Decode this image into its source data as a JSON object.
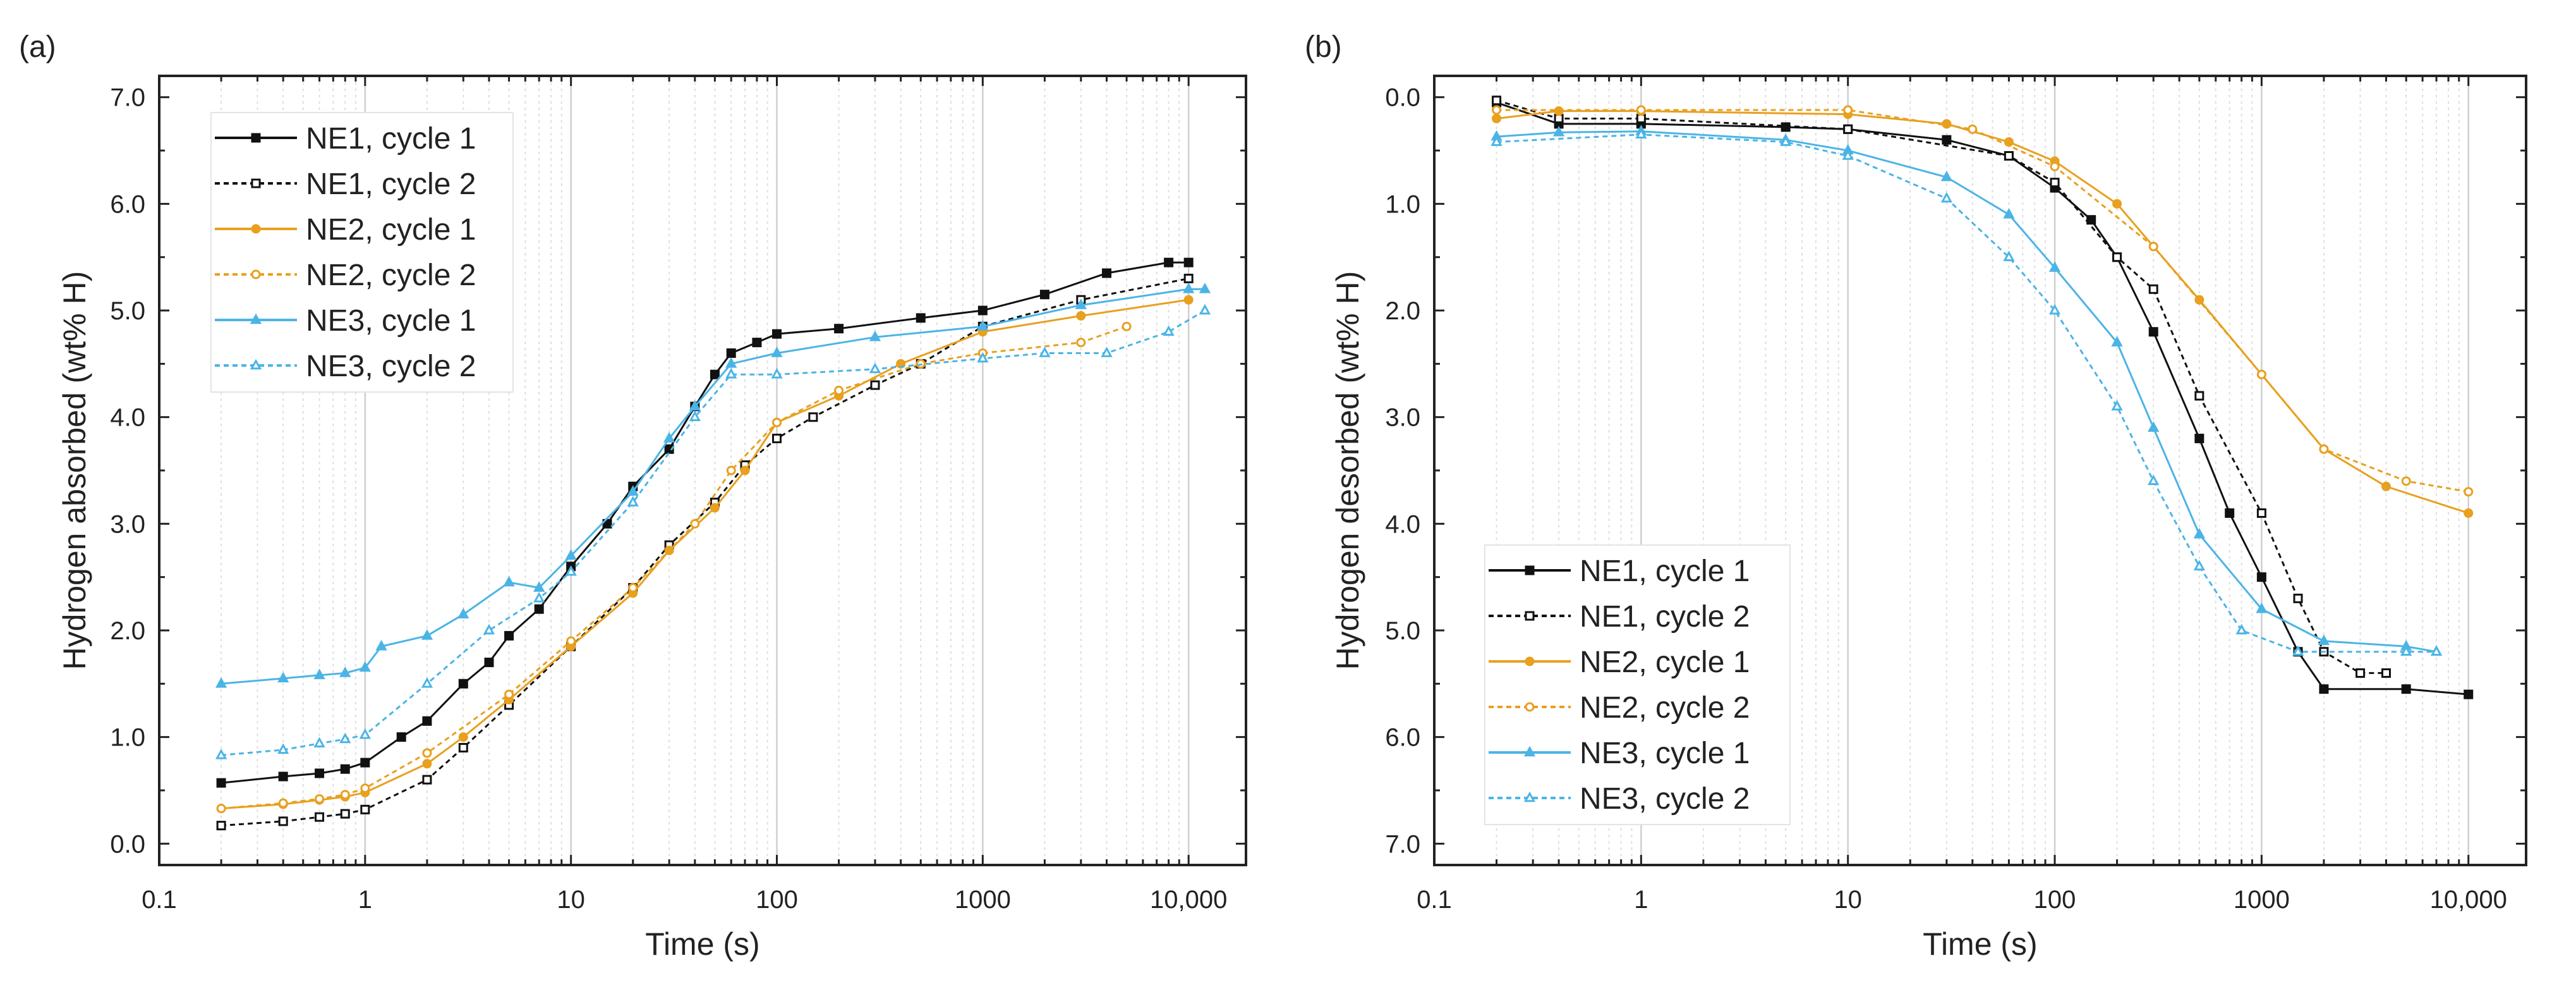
{
  "colors": {
    "NE1": "#111111",
    "NE2": "#E8A01E",
    "NE3": "#4BB4E6"
  },
  "chart_data": [
    {
      "panel_label": "(a)",
      "type": "line",
      "xlabel": "Time (s)",
      "ylabel": "Hydrogen absorbed (wt% H)",
      "xscale": "log",
      "xlim": [
        0.1,
        19000
      ],
      "ylim": [
        -0.2,
        7.2
      ],
      "y_inverted": false,
      "xticks": [
        0.1,
        1,
        10,
        100,
        1000,
        10000
      ],
      "xtick_labels": [
        "0.1",
        "1",
        "10",
        "100",
        "1000",
        "10,000"
      ],
      "yticks": [
        0,
        1,
        2,
        3,
        4,
        5,
        6,
        7
      ],
      "ytick_labels": [
        "0.0",
        "1.0",
        "2.0",
        "3.0",
        "4.0",
        "5.0",
        "6.0",
        "7.0"
      ],
      "grid": "vertical, log minor",
      "legend_position": "top-left",
      "series": [
        {
          "name": "NE1, cycle 1",
          "color_key": "NE1",
          "dash": false,
          "marker": "square-filled",
          "x": [
            0.2,
            0.4,
            0.6,
            0.8,
            1,
            1.5,
            2,
            3,
            4,
            5,
            7,
            10,
            15,
            20,
            30,
            40,
            50,
            60,
            80,
            100,
            200,
            500,
            1000,
            2000,
            4000,
            8000,
            10000
          ],
          "y": [
            0.57,
            0.63,
            0.66,
            0.7,
            0.76,
            1.0,
            1.15,
            1.5,
            1.7,
            1.95,
            2.2,
            2.6,
            3.0,
            3.35,
            3.7,
            4.1,
            4.4,
            4.6,
            4.7,
            4.78,
            4.83,
            4.93,
            5.0,
            5.15,
            5.35,
            5.45,
            5.45
          ]
        },
        {
          "name": "NE1, cycle 2",
          "color_key": "NE1",
          "dash": true,
          "marker": "square-open",
          "x": [
            0.2,
            0.4,
            0.6,
            0.8,
            1,
            2,
            3,
            5,
            10,
            20,
            30,
            50,
            70,
            100,
            150,
            300,
            500,
            1000,
            3000,
            10000
          ],
          "y": [
            0.17,
            0.21,
            0.25,
            0.28,
            0.32,
            0.6,
            0.9,
            1.3,
            1.85,
            2.4,
            2.8,
            3.2,
            3.55,
            3.8,
            4.0,
            4.3,
            4.5,
            4.85,
            5.1,
            5.3
          ]
        },
        {
          "name": "NE2, cycle 1",
          "color_key": "NE2",
          "dash": false,
          "marker": "circle-filled",
          "x": [
            0.2,
            0.4,
            0.6,
            0.8,
            1,
            2,
            3,
            5,
            10,
            20,
            30,
            50,
            70,
            100,
            200,
            400,
            1000,
            3000,
            10000
          ],
          "y": [
            0.33,
            0.37,
            0.41,
            0.44,
            0.48,
            0.75,
            1.0,
            1.35,
            1.85,
            2.35,
            2.75,
            3.15,
            3.5,
            3.95,
            4.2,
            4.5,
            4.8,
            4.95,
            5.1
          ]
        },
        {
          "name": "NE2, cycle 2",
          "color_key": "NE2",
          "dash": true,
          "marker": "circle-open",
          "x": [
            0.2,
            0.4,
            0.6,
            0.8,
            1,
            2,
            5,
            10,
            20,
            40,
            60,
            100,
            200,
            500,
            1000,
            3000,
            5000
          ],
          "y": [
            0.33,
            0.38,
            0.42,
            0.46,
            0.52,
            0.85,
            1.4,
            1.9,
            2.4,
            3.0,
            3.5,
            3.95,
            4.25,
            4.5,
            4.6,
            4.7,
            4.85
          ]
        },
        {
          "name": "NE3, cycle 1",
          "color_key": "NE3",
          "dash": false,
          "marker": "triangle-filled",
          "x": [
            0.2,
            0.4,
            0.6,
            0.8,
            1,
            1.2,
            2,
            3,
            5,
            7,
            10,
            20,
            30,
            40,
            60,
            100,
            300,
            1000,
            3000,
            10000,
            12000
          ],
          "y": [
            1.5,
            1.55,
            1.58,
            1.6,
            1.65,
            1.85,
            1.95,
            2.15,
            2.45,
            2.4,
            2.7,
            3.3,
            3.8,
            4.1,
            4.5,
            4.6,
            4.75,
            4.85,
            5.05,
            5.2,
            5.2
          ]
        },
        {
          "name": "NE3, cycle 2",
          "color_key": "NE3",
          "dash": true,
          "marker": "triangle-open",
          "x": [
            0.2,
            0.4,
            0.6,
            0.8,
            1,
            2,
            4,
            7,
            10,
            20,
            40,
            60,
            100,
            300,
            1000,
            2000,
            4000,
            8000,
            12000
          ],
          "y": [
            0.83,
            0.88,
            0.94,
            0.98,
            1.02,
            1.5,
            2.0,
            2.3,
            2.55,
            3.2,
            4.0,
            4.4,
            4.4,
            4.45,
            4.55,
            4.6,
            4.6,
            4.8,
            5.0
          ]
        }
      ]
    },
    {
      "panel_label": "(b)",
      "type": "line",
      "xlabel": "Time (s)",
      "ylabel": "Hydrogen desorbed (wt% H)",
      "xscale": "log",
      "xlim": [
        0.1,
        19000
      ],
      "ylim": [
        -0.2,
        7.2
      ],
      "y_inverted": true,
      "xticks": [
        0.1,
        1,
        10,
        100,
        1000,
        10000
      ],
      "xtick_labels": [
        "0.1",
        "1",
        "10",
        "100",
        "1000",
        "10,000"
      ],
      "yticks": [
        0,
        1,
        2,
        3,
        4,
        5,
        6,
        7
      ],
      "ytick_labels": [
        "0.0",
        "1.0",
        "2.0",
        "3.0",
        "4.0",
        "5.0",
        "6.0",
        "7.0"
      ],
      "grid": "vertical, log minor",
      "legend_position": "bottom-left",
      "series": [
        {
          "name": "NE1, cycle 1",
          "color_key": "NE1",
          "dash": false,
          "marker": "square-filled",
          "x": [
            0.2,
            0.4,
            1,
            5,
            10,
            30,
            60,
            100,
            150,
            200,
            300,
            500,
            700,
            1000,
            1500,
            2000,
            5000,
            10000
          ],
          "y": [
            0.05,
            0.25,
            0.25,
            0.28,
            0.3,
            0.4,
            0.55,
            0.85,
            1.15,
            1.5,
            2.2,
            3.2,
            3.9,
            4.5,
            5.2,
            5.55,
            5.55,
            5.6
          ]
        },
        {
          "name": "NE1, cycle 2",
          "color_key": "NE1",
          "dash": true,
          "marker": "square-open",
          "x": [
            0.2,
            0.4,
            1,
            10,
            60,
            100,
            200,
            300,
            500,
            1000,
            1500,
            2000,
            3000,
            4000
          ],
          "y": [
            0.03,
            0.2,
            0.2,
            0.3,
            0.55,
            0.8,
            1.5,
            1.8,
            2.8,
            3.9,
            4.7,
            5.2,
            5.4,
            5.4
          ]
        },
        {
          "name": "NE2, cycle 1",
          "color_key": "NE2",
          "dash": false,
          "marker": "circle-filled",
          "x": [
            0.2,
            0.4,
            1,
            10,
            30,
            60,
            100,
            200,
            300,
            500,
            1000,
            2000,
            4000,
            10000
          ],
          "y": [
            0.2,
            0.13,
            0.13,
            0.16,
            0.25,
            0.42,
            0.6,
            1.0,
            1.4,
            1.9,
            2.6,
            3.3,
            3.65,
            3.9
          ]
        },
        {
          "name": "NE2, cycle 2",
          "color_key": "NE2",
          "dash": true,
          "marker": "circle-open",
          "x": [
            0.2,
            1,
            10,
            40,
            100,
            300,
            1000,
            2000,
            5000,
            10000
          ],
          "y": [
            0.12,
            0.12,
            0.12,
            0.3,
            0.65,
            1.4,
            2.6,
            3.3,
            3.6,
            3.7
          ]
        },
        {
          "name": "NE3, cycle 1",
          "color_key": "NE3",
          "dash": false,
          "marker": "triangle-filled",
          "x": [
            0.2,
            0.4,
            1,
            5,
            10,
            30,
            60,
            100,
            200,
            300,
            500,
            1000,
            2000,
            5000,
            7000
          ],
          "y": [
            0.37,
            0.33,
            0.32,
            0.4,
            0.5,
            0.75,
            1.1,
            1.6,
            2.3,
            3.1,
            4.1,
            4.8,
            5.1,
            5.15,
            5.2
          ]
        },
        {
          "name": "NE3, cycle 2",
          "color_key": "NE3",
          "dash": true,
          "marker": "triangle-open",
          "x": [
            0.2,
            1,
            5,
            10,
            30,
            60,
            100,
            200,
            300,
            500,
            800,
            1500,
            5000,
            7000
          ],
          "y": [
            0.42,
            0.35,
            0.42,
            0.55,
            0.95,
            1.5,
            2.0,
            2.9,
            3.6,
            4.4,
            5.0,
            5.2,
            5.2,
            5.2
          ]
        }
      ]
    }
  ]
}
